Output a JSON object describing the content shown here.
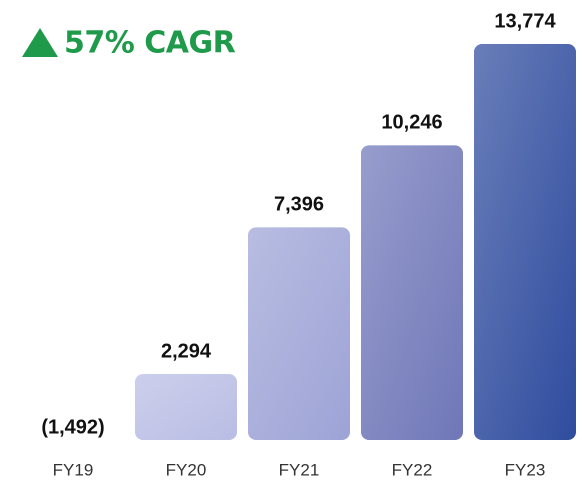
{
  "chart_data": {
    "type": "bar",
    "title": "57% CAGR",
    "categories": [
      "FY19",
      "FY20",
      "FY21",
      "FY22",
      "FY23"
    ],
    "values": [
      -1492,
      2294,
      7396,
      10246,
      13774
    ],
    "value_labels": [
      "(1,492)",
      "2,294",
      "7,396",
      "10,246",
      "13,774"
    ],
    "colors": [
      "#b9bde4",
      "#b9bde4",
      "#9da3d6",
      "#6f77b8",
      "#2f4c9e"
    ],
    "ylim": [
      0,
      14000
    ]
  }
}
